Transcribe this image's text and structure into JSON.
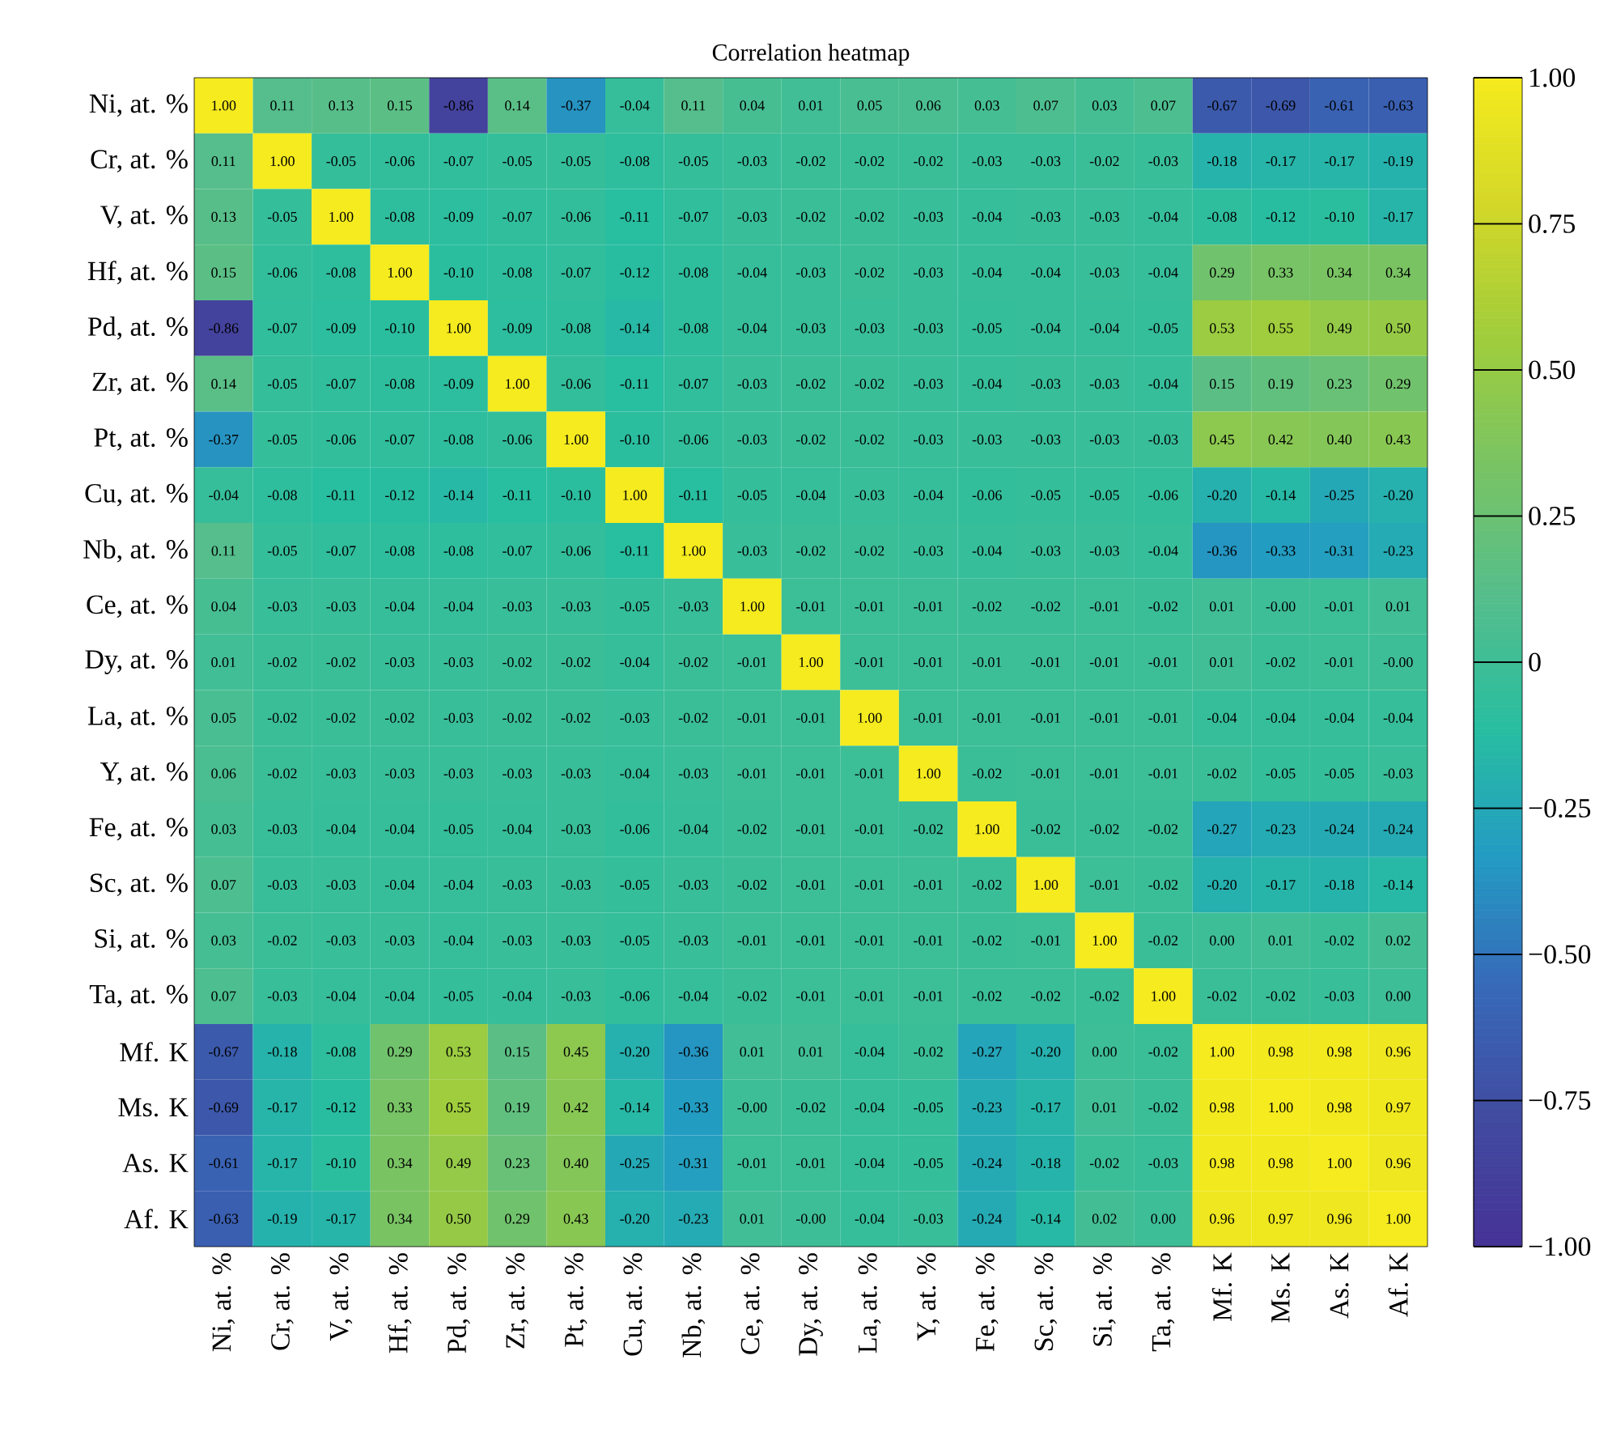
{
  "chart_data": {
    "type": "heatmap",
    "title": "Correlation heatmap",
    "categories": [
      "Ni, at. %",
      "Cr, at. %",
      "V, at. %",
      "Hf, at. %",
      "Pd, at. %",
      "Zr, at. %",
      "Pt, at. %",
      "Cu, at. %",
      "Nb, at. %",
      "Ce, at. %",
      "Dy, at. %",
      "La, at. %",
      "Y, at. %",
      "Fe, at. %",
      "Sc, at. %",
      "Si, at. %",
      "Ta, at. %",
      "Mf. K",
      "Ms. K",
      "As. K",
      "Af. K"
    ],
    "y_categories": [
      "Ni, at. %",
      "Cr, at. %",
      "V, at. %",
      "Hf, at. %",
      "Pd, at. %",
      "Zr, at. %",
      "Pt, at. %",
      "Cu, at. %",
      "Nb, at. %",
      "Ce, at. %",
      "Dy, at. %",
      "La, at. %",
      "Y, at. %",
      "Fe, at. %",
      "Sc, at. %",
      "Si, at. %",
      "Ta, at. %",
      "Mf. K",
      "Ms. K",
      "As. K",
      "Af. K"
    ],
    "cells": [
      [
        1.0,
        0.11,
        0.13,
        0.15,
        -0.86,
        0.14,
        -0.37,
        -0.04,
        0.11,
        0.04,
        0.01,
        0.05,
        0.06,
        0.03,
        0.07,
        0.03,
        0.07,
        -0.67,
        -0.69,
        -0.61,
        -0.63
      ],
      [
        0.11,
        1.0,
        -0.05,
        -0.06,
        -0.07,
        -0.05,
        -0.05,
        -0.08,
        -0.05,
        -0.03,
        -0.02,
        -0.02,
        -0.02,
        -0.03,
        -0.03,
        -0.02,
        -0.03,
        -0.18,
        -0.17,
        -0.17,
        -0.19
      ],
      [
        0.13,
        -0.05,
        1.0,
        -0.08,
        -0.09,
        -0.07,
        -0.06,
        -0.11,
        -0.07,
        -0.03,
        -0.02,
        -0.02,
        -0.03,
        -0.04,
        -0.03,
        -0.03,
        -0.04,
        -0.08,
        -0.12,
        -0.1,
        -0.17
      ],
      [
        0.15,
        -0.06,
        -0.08,
        1.0,
        -0.1,
        -0.08,
        -0.07,
        -0.12,
        -0.08,
        -0.04,
        -0.03,
        -0.02,
        -0.03,
        -0.04,
        -0.04,
        -0.03,
        -0.04,
        0.29,
        0.33,
        0.34,
        0.34
      ],
      [
        -0.86,
        -0.07,
        -0.09,
        -0.1,
        1.0,
        -0.09,
        -0.08,
        -0.14,
        -0.08,
        -0.04,
        -0.03,
        -0.03,
        -0.03,
        -0.05,
        -0.04,
        -0.04,
        -0.05,
        0.53,
        0.55,
        0.49,
        0.5
      ],
      [
        0.14,
        -0.05,
        -0.07,
        -0.08,
        -0.09,
        1.0,
        -0.06,
        -0.11,
        -0.07,
        -0.03,
        -0.02,
        -0.02,
        -0.03,
        -0.04,
        -0.03,
        -0.03,
        -0.04,
        0.15,
        0.19,
        0.23,
        0.29
      ],
      [
        -0.37,
        -0.05,
        -0.06,
        -0.07,
        -0.08,
        -0.06,
        1.0,
        -0.1,
        -0.06,
        -0.03,
        -0.02,
        -0.02,
        -0.03,
        -0.03,
        -0.03,
        -0.03,
        -0.03,
        0.45,
        0.42,
        0.4,
        0.43
      ],
      [
        -0.04,
        -0.08,
        -0.11,
        -0.12,
        -0.14,
        -0.11,
        -0.1,
        1.0,
        -0.11,
        -0.05,
        -0.04,
        -0.03,
        -0.04,
        -0.06,
        -0.05,
        -0.05,
        -0.06,
        -0.2,
        -0.14,
        -0.25,
        -0.2
      ],
      [
        0.11,
        -0.05,
        -0.07,
        -0.08,
        -0.08,
        -0.07,
        -0.06,
        -0.11,
        1.0,
        -0.03,
        -0.02,
        -0.02,
        -0.03,
        -0.04,
        -0.03,
        -0.03,
        -0.04,
        -0.36,
        -0.33,
        -0.31,
        -0.23
      ],
      [
        0.04,
        -0.03,
        -0.03,
        -0.04,
        -0.04,
        -0.03,
        -0.03,
        -0.05,
        -0.03,
        1.0,
        -0.01,
        -0.01,
        -0.01,
        -0.02,
        -0.02,
        -0.01,
        -0.02,
        0.01,
        0.0,
        -0.01,
        0.01
      ],
      [
        0.01,
        -0.02,
        -0.02,
        -0.03,
        -0.03,
        -0.02,
        -0.02,
        -0.04,
        -0.02,
        -0.01,
        1.0,
        -0.01,
        -0.01,
        -0.01,
        -0.01,
        -0.01,
        -0.01,
        0.01,
        -0.02,
        -0.01,
        0.0
      ],
      [
        0.05,
        -0.02,
        -0.02,
        -0.02,
        -0.03,
        -0.02,
        -0.02,
        -0.03,
        -0.02,
        -0.01,
        -0.01,
        1.0,
        -0.01,
        -0.01,
        -0.01,
        -0.01,
        -0.01,
        -0.04,
        -0.04,
        -0.04,
        -0.04
      ],
      [
        0.06,
        -0.02,
        -0.03,
        -0.03,
        -0.03,
        -0.03,
        -0.03,
        -0.04,
        -0.03,
        -0.01,
        -0.01,
        -0.01,
        1.0,
        -0.02,
        -0.01,
        -0.01,
        -0.01,
        -0.02,
        -0.05,
        -0.05,
        -0.03
      ],
      [
        0.03,
        -0.03,
        -0.04,
        -0.04,
        -0.05,
        -0.04,
        -0.03,
        -0.06,
        -0.04,
        -0.02,
        -0.01,
        -0.01,
        -0.02,
        1.0,
        -0.02,
        -0.02,
        -0.02,
        -0.27,
        -0.23,
        -0.24,
        -0.24
      ],
      [
        0.07,
        -0.03,
        -0.03,
        -0.04,
        -0.04,
        -0.03,
        -0.03,
        -0.05,
        -0.03,
        -0.02,
        -0.01,
        -0.01,
        -0.01,
        -0.02,
        1.0,
        -0.01,
        -0.02,
        -0.2,
        -0.17,
        -0.18,
        -0.14
      ],
      [
        0.03,
        -0.02,
        -0.03,
        -0.03,
        -0.04,
        -0.03,
        -0.03,
        -0.05,
        -0.03,
        -0.01,
        -0.01,
        -0.01,
        -0.01,
        -0.02,
        -0.01,
        1.0,
        -0.02,
        0.0,
        0.01,
        -0.02,
        0.02
      ],
      [
        0.07,
        -0.03,
        -0.04,
        -0.04,
        -0.05,
        -0.04,
        -0.03,
        -0.06,
        -0.04,
        -0.02,
        -0.01,
        -0.01,
        -0.01,
        -0.02,
        -0.02,
        -0.02,
        1.0,
        -0.02,
        -0.02,
        -0.03,
        0.0
      ],
      [
        -0.67,
        -0.18,
        -0.08,
        0.29,
        0.53,
        0.15,
        0.45,
        -0.2,
        -0.36,
        0.01,
        0.01,
        -0.04,
        -0.02,
        -0.27,
        -0.2,
        0.0,
        -0.02,
        1.0,
        0.98,
        0.98,
        0.96
      ],
      [
        -0.69,
        -0.17,
        -0.12,
        0.33,
        0.55,
        0.19,
        0.42,
        -0.14,
        -0.33,
        0.0,
        -0.02,
        -0.04,
        -0.05,
        -0.23,
        -0.17,
        0.01,
        -0.02,
        0.98,
        1.0,
        0.98,
        0.97
      ],
      [
        -0.61,
        -0.17,
        -0.1,
        0.34,
        0.49,
        0.23,
        0.4,
        -0.25,
        -0.31,
        -0.01,
        -0.01,
        -0.04,
        -0.05,
        -0.24,
        -0.18,
        -0.02,
        -0.03,
        0.98,
        0.98,
        1.0,
        0.96
      ],
      [
        -0.63,
        -0.19,
        -0.17,
        0.34,
        0.5,
        0.29,
        0.43,
        -0.2,
        -0.23,
        0.01,
        0.0,
        -0.04,
        -0.03,
        -0.24,
        -0.14,
        0.02,
        0.0,
        0.96,
        0.97,
        0.96,
        1.0
      ]
    ],
    "cell_labels": [
      [
        "1.00",
        "0.11",
        "0.13",
        "0.15",
        "-0.86",
        "0.14",
        "-0.37",
        "-0.04",
        "0.11",
        "0.04",
        "0.01",
        "0.05",
        "0.06",
        "0.03",
        "0.07",
        "0.03",
        "0.07",
        "-0.67",
        "-0.69",
        "-0.61",
        "-0.63"
      ],
      [
        "0.11",
        "1.00",
        "-0.05",
        "-0.06",
        "-0.07",
        "-0.05",
        "-0.05",
        "-0.08",
        "-0.05",
        "-0.03",
        "-0.02",
        "-0.02",
        "-0.02",
        "-0.03",
        "-0.03",
        "-0.02",
        "-0.03",
        "-0.18",
        "-0.17",
        "-0.17",
        "-0.19"
      ],
      [
        "0.13",
        "-0.05",
        "1.00",
        "-0.08",
        "-0.09",
        "-0.07",
        "-0.06",
        "-0.11",
        "-0.07",
        "-0.03",
        "-0.02",
        "-0.02",
        "-0.03",
        "-0.04",
        "-0.03",
        "-0.03",
        "-0.04",
        "-0.08",
        "-0.12",
        "-0.10",
        "-0.17"
      ],
      [
        "0.15",
        "-0.06",
        "-0.08",
        "1.00",
        "-0.10",
        "-0.08",
        "-0.07",
        "-0.12",
        "-0.08",
        "-0.04",
        "-0.03",
        "-0.02",
        "-0.03",
        "-0.04",
        "-0.04",
        "-0.03",
        "-0.04",
        "0.29",
        "0.33",
        "0.34",
        "0.34"
      ],
      [
        "-0.86",
        "-0.07",
        "-0.09",
        "-0.10",
        "1.00",
        "-0.09",
        "-0.08",
        "-0.14",
        "-0.08",
        "-0.04",
        "-0.03",
        "-0.03",
        "-0.03",
        "-0.05",
        "-0.04",
        "-0.04",
        "-0.05",
        "0.53",
        "0.55",
        "0.49",
        "0.50"
      ],
      [
        "0.14",
        "-0.05",
        "-0.07",
        "-0.08",
        "-0.09",
        "1.00",
        "-0.06",
        "-0.11",
        "-0.07",
        "-0.03",
        "-0.02",
        "-0.02",
        "-0.03",
        "-0.04",
        "-0.03",
        "-0.03",
        "-0.04",
        "0.15",
        "0.19",
        "0.23",
        "0.29"
      ],
      [
        "-0.37",
        "-0.05",
        "-0.06",
        "-0.07",
        "-0.08",
        "-0.06",
        "1.00",
        "-0.10",
        "-0.06",
        "-0.03",
        "-0.02",
        "-0.02",
        "-0.03",
        "-0.03",
        "-0.03",
        "-0.03",
        "-0.03",
        "0.45",
        "0.42",
        "0.40",
        "0.43"
      ],
      [
        "-0.04",
        "-0.08",
        "-0.11",
        "-0.12",
        "-0.14",
        "-0.11",
        "-0.10",
        "1.00",
        "-0.11",
        "-0.05",
        "-0.04",
        "-0.03",
        "-0.04",
        "-0.06",
        "-0.05",
        "-0.05",
        "-0.06",
        "-0.20",
        "-0.14",
        "-0.25",
        "-0.20"
      ],
      [
        "0.11",
        "-0.05",
        "-0.07",
        "-0.08",
        "-0.08",
        "-0.07",
        "-0.06",
        "-0.11",
        "1.00",
        "-0.03",
        "-0.02",
        "-0.02",
        "-0.03",
        "-0.04",
        "-0.03",
        "-0.03",
        "-0.04",
        "-0.36",
        "-0.33",
        "-0.31",
        "-0.23"
      ],
      [
        "0.04",
        "-0.03",
        "-0.03",
        "-0.04",
        "-0.04",
        "-0.03",
        "-0.03",
        "-0.05",
        "-0.03",
        "1.00",
        "-0.01",
        "-0.01",
        "-0.01",
        "-0.02",
        "-0.02",
        "-0.01",
        "-0.02",
        "0.01",
        "-0.00",
        "-0.01",
        "0.01"
      ],
      [
        "0.01",
        "-0.02",
        "-0.02",
        "-0.03",
        "-0.03",
        "-0.02",
        "-0.02",
        "-0.04",
        "-0.02",
        "-0.01",
        "1.00",
        "-0.01",
        "-0.01",
        "-0.01",
        "-0.01",
        "-0.01",
        "-0.01",
        "0.01",
        "-0.02",
        "-0.01",
        "-0.00"
      ],
      [
        "0.05",
        "-0.02",
        "-0.02",
        "-0.02",
        "-0.03",
        "-0.02",
        "-0.02",
        "-0.03",
        "-0.02",
        "-0.01",
        "-0.01",
        "1.00",
        "-0.01",
        "-0.01",
        "-0.01",
        "-0.01",
        "-0.01",
        "-0.04",
        "-0.04",
        "-0.04",
        "-0.04"
      ],
      [
        "0.06",
        "-0.02",
        "-0.03",
        "-0.03",
        "-0.03",
        "-0.03",
        "-0.03",
        "-0.04",
        "-0.03",
        "-0.01",
        "-0.01",
        "-0.01",
        "1.00",
        "-0.02",
        "-0.01",
        "-0.01",
        "-0.01",
        "-0.02",
        "-0.05",
        "-0.05",
        "-0.03"
      ],
      [
        "0.03",
        "-0.03",
        "-0.04",
        "-0.04",
        "-0.05",
        "-0.04",
        "-0.03",
        "-0.06",
        "-0.04",
        "-0.02",
        "-0.01",
        "-0.01",
        "-0.02",
        "1.00",
        "-0.02",
        "-0.02",
        "-0.02",
        "-0.27",
        "-0.23",
        "-0.24",
        "-0.24"
      ],
      [
        "0.07",
        "-0.03",
        "-0.03",
        "-0.04",
        "-0.04",
        "-0.03",
        "-0.03",
        "-0.05",
        "-0.03",
        "-0.02",
        "-0.01",
        "-0.01",
        "-0.01",
        "-0.02",
        "1.00",
        "-0.01",
        "-0.02",
        "-0.20",
        "-0.17",
        "-0.18",
        "-0.14"
      ],
      [
        "0.03",
        "-0.02",
        "-0.03",
        "-0.03",
        "-0.04",
        "-0.03",
        "-0.03",
        "-0.05",
        "-0.03",
        "-0.01",
        "-0.01",
        "-0.01",
        "-0.01",
        "-0.02",
        "-0.01",
        "1.00",
        "-0.02",
        "0.00",
        "0.01",
        "-0.02",
        "0.02"
      ],
      [
        "0.07",
        "-0.03",
        "-0.04",
        "-0.04",
        "-0.05",
        "-0.04",
        "-0.03",
        "-0.06",
        "-0.04",
        "-0.02",
        "-0.01",
        "-0.01",
        "-0.01",
        "-0.02",
        "-0.02",
        "-0.02",
        "1.00",
        "-0.02",
        "-0.02",
        "-0.03",
        "0.00"
      ],
      [
        "-0.67",
        "-0.18",
        "-0.08",
        "0.29",
        "0.53",
        "0.15",
        "0.45",
        "-0.20",
        "-0.36",
        "0.01",
        "0.01",
        "-0.04",
        "-0.02",
        "-0.27",
        "-0.20",
        "0.00",
        "-0.02",
        "1.00",
        "0.98",
        "0.98",
        "0.96"
      ],
      [
        "-0.69",
        "-0.17",
        "-0.12",
        "0.33",
        "0.55",
        "0.19",
        "0.42",
        "-0.14",
        "-0.33",
        "-0.00",
        "-0.02",
        "-0.04",
        "-0.05",
        "-0.23",
        "-0.17",
        "0.01",
        "-0.02",
        "0.98",
        "1.00",
        "0.98",
        "0.97"
      ],
      [
        "-0.61",
        "-0.17",
        "-0.10",
        "0.34",
        "0.49",
        "0.23",
        "0.40",
        "-0.25",
        "-0.31",
        "-0.01",
        "-0.01",
        "-0.04",
        "-0.05",
        "-0.24",
        "-0.18",
        "-0.02",
        "-0.03",
        "0.98",
        "0.98",
        "1.00",
        "0.96"
      ],
      [
        "-0.63",
        "-0.19",
        "-0.17",
        "0.34",
        "0.50",
        "0.29",
        "0.43",
        "-0.20",
        "-0.23",
        "0.01",
        "-0.00",
        "-0.04",
        "-0.03",
        "-0.24",
        "-0.14",
        "0.02",
        "0.00",
        "0.96",
        "0.97",
        "0.96",
        "1.00"
      ]
    ],
    "clim": [
      -1,
      1
    ],
    "cticks": [
      {
        "value": -1,
        "label": "−1.00"
      },
      {
        "value": -0.75,
        "label": "−0.75"
      },
      {
        "value": -0.5,
        "label": "−0.50"
      },
      {
        "value": -0.25,
        "label": "−0.25"
      },
      0,
      {
        "value": 0.25,
        "label": "0.25"
      },
      {
        "value": 0.5,
        "label": "0.50"
      },
      {
        "value": 0.75,
        "label": "0.75"
      },
      {
        "value": 1,
        "label": "1.00"
      }
    ]
  }
}
